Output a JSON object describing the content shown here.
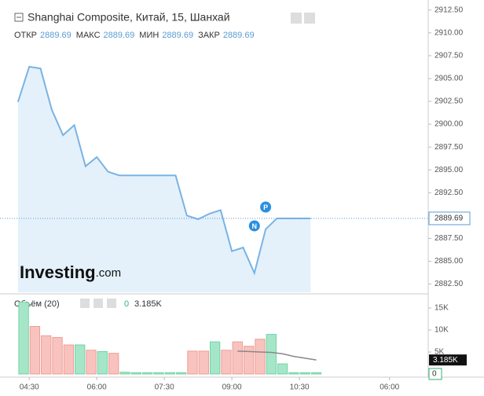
{
  "chart_data": [
    {
      "type": "area",
      "title": "Shanghai Composite, Китай, 15, Шанхай",
      "ohlc": [
        {
          "label": "ОТКР",
          "value": 2889.69
        },
        {
          "label": "МАКС",
          "value": 2889.69
        },
        {
          "label": "МИН",
          "value": 2889.69
        },
        {
          "label": "ЗАКР",
          "value": 2889.69
        }
      ],
      "x": [
        4.25,
        4.5,
        4.75,
        5,
        5.25,
        5.5,
        5.75,
        6,
        6.25,
        6.5,
        6.75,
        7,
        7.25,
        7.5,
        7.75,
        8,
        8.25,
        8.5,
        8.75,
        9,
        9.25,
        9.5,
        9.75,
        10,
        10.25,
        10.5,
        10.75
      ],
      "values": [
        2902.44,
        2906.3,
        2906.1,
        2901.6,
        2898.8,
        2899.9,
        2895.4,
        2896.4,
        2894.8,
        2894.4,
        2894.4,
        2894.4,
        2894.4,
        2894.4,
        2894.4,
        2890.0,
        2889.6,
        2890.2,
        2890.6,
        2886.1,
        2886.5,
        2883.7,
        2888.5,
        2889.69,
        2889.69,
        2889.69,
        2889.69
      ],
      "color": "#7ab3e3",
      "fill": "#e4f1fb",
      "xlim": [
        4.06,
        13.36
      ],
      "ylim": [
        2881.6,
        2913.6
      ],
      "yticks": [
        {
          "value": 2882.5,
          "label": "2882.50"
        },
        {
          "value": 2885,
          "label": "2885.00"
        },
        {
          "value": 2887.5,
          "label": "2887.50"
        },
        {
          "value": 2890,
          "label": "2890.00"
        },
        {
          "value": 2892.5,
          "label": "2892.50"
        },
        {
          "value": 2895,
          "label": "2895.00"
        },
        {
          "value": 2897.5,
          "label": "2897.50"
        },
        {
          "value": 2900,
          "label": "2900.00"
        },
        {
          "value": 2902.5,
          "label": "2902.50"
        },
        {
          "value": 2905,
          "label": "2905.00"
        },
        {
          "value": 2907.5,
          "label": "2907.50"
        },
        {
          "value": 2910,
          "label": "2910.00"
        },
        {
          "value": 2912.5,
          "label": "2912.50"
        }
      ],
      "last_value": 2889.69,
      "annotations": [
        {
          "text": "P",
          "x": 9.75,
          "y": 2890.93
        },
        {
          "text": "N",
          "x": 9.5,
          "y": 2888.87
        }
      ],
      "watermark": [
        "Investing",
        ".com"
      ]
    },
    {
      "type": "bar",
      "title": "Объём (20)",
      "x": [
        4.25,
        4.5,
        4.75,
        5,
        5.25,
        5.5,
        5.75,
        6,
        6.25,
        6.5,
        6.75,
        7,
        7.25,
        7.5,
        7.75,
        8,
        8.25,
        8.5,
        8.75,
        9,
        9.25,
        9.5,
        9.75,
        10,
        10.25,
        10.5,
        10.75
      ],
      "values": [
        16.3,
        10.8,
        8.7,
        8.3,
        6.6,
        6.6,
        5.4,
        5.1,
        4.7,
        0.4,
        0.3,
        0.3,
        0.3,
        0.3,
        0.3,
        5.2,
        5.2,
        7.3,
        5.4,
        7.3,
        6.3,
        7.9,
        9.0,
        2.3,
        0.3,
        0.3,
        0.3
      ],
      "colors": [
        "#a6e6c8",
        "#f8c3be",
        "#f8c3be",
        "#f8c3be",
        "#f8c3be",
        "#a6e6c8",
        "#f8c3be",
        "#a6e6c8",
        "#f8c3be",
        "#a6e6c8",
        "#a6e6c8",
        "#a6e6c8",
        "#a6e6c8",
        "#a6e6c8",
        "#a6e6c8",
        "#f8c3be",
        "#f8c3be",
        "#a6e6c8",
        "#f8c3be",
        "#f8c3be",
        "#f8c3be",
        "#f8c3be",
        "#a6e6c8",
        "#a6e6c8",
        "#a6e6c8",
        "#a6e6c8",
        "#a6e6c8"
      ],
      "ma": {
        "values": [
          null,
          null,
          null,
          null,
          null,
          null,
          null,
          null,
          null,
          null,
          null,
          null,
          null,
          null,
          null,
          null,
          null,
          null,
          null,
          5.2,
          5.1,
          5.0,
          4.9,
          4.6,
          4.0,
          3.6,
          3.185
        ],
        "color": "#888888",
        "last_label": "3.185K"
      },
      "current_volume": 0,
      "xlim": [
        4.06,
        13.36
      ],
      "ylim": [
        -0.36,
        17.5
      ],
      "yticks": [
        {
          "value": 5,
          "label": "5K"
        },
        {
          "value": 10,
          "label": "10K"
        },
        {
          "value": 15,
          "label": "15K"
        }
      ],
      "xticks": [
        {
          "value": 4.5,
          "label": "04:30"
        },
        {
          "value": 6,
          "label": "06:00"
        },
        {
          "value": 7.5,
          "label": "07:30"
        },
        {
          "value": 9,
          "label": "09:00"
        },
        {
          "value": 10.5,
          "label": "10:30"
        },
        {
          "value": 12.5,
          "label": "06:00"
        }
      ]
    }
  ]
}
